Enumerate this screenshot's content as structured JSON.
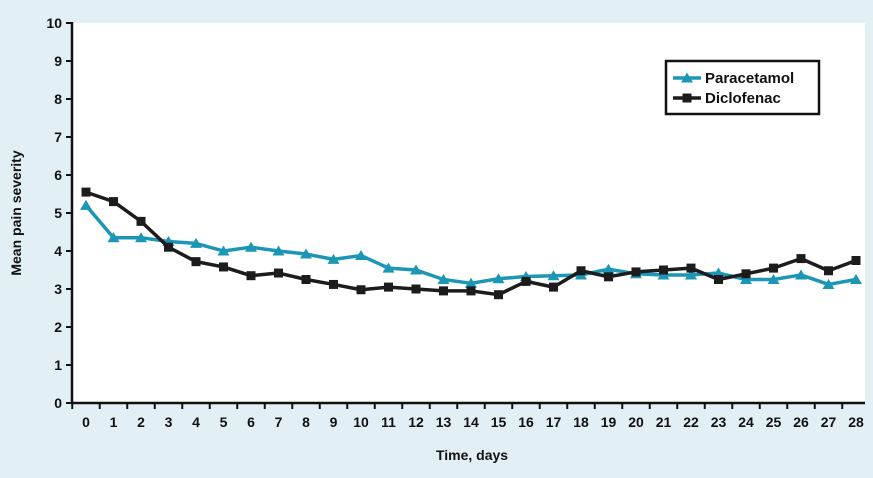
{
  "colors": {
    "background": "#e2eff5",
    "plot_background": "#ffffff",
    "axis": "#111111",
    "paracetamol": "#1b97b5",
    "diclofenac": "#1c1c1c"
  },
  "chart_data": {
    "type": "line",
    "title": "",
    "xlabel": "Time, days",
    "ylabel": "Mean pain severity",
    "xlim": [
      0,
      28
    ],
    "ylim": [
      0,
      10
    ],
    "x_ticks": [
      "0",
      "1",
      "2",
      "3",
      "4",
      "5",
      "6",
      "7",
      "8",
      "9",
      "10",
      "11",
      "12",
      "13",
      "14",
      "15",
      "16",
      "17",
      "18",
      "19",
      "20",
      "21",
      "22",
      "23",
      "24",
      "25",
      "26",
      "27",
      "28"
    ],
    "y_ticks": [
      "0",
      "1",
      "2",
      "3",
      "4",
      "5",
      "6",
      "7",
      "8",
      "9",
      "10"
    ],
    "grid": false,
    "legend_position": "top-right",
    "x": [
      0,
      1,
      2,
      3,
      4,
      5,
      6,
      7,
      8,
      9,
      10,
      11,
      12,
      13,
      14,
      15,
      16,
      17,
      18,
      19,
      20,
      21,
      22,
      23,
      24,
      25,
      26,
      27,
      28
    ],
    "series": [
      {
        "name": "Paracetamol",
        "marker": "triangle",
        "color": "#1b97b5",
        "values": [
          5.2,
          4.35,
          4.35,
          4.25,
          4.2,
          4.0,
          4.1,
          4.0,
          3.92,
          3.78,
          3.88,
          3.55,
          3.5,
          3.25,
          3.15,
          3.27,
          3.33,
          3.35,
          3.37,
          3.52,
          3.4,
          3.37,
          3.37,
          3.42,
          3.25,
          3.25,
          3.37,
          3.12,
          3.25
        ]
      },
      {
        "name": "Diclofenac",
        "marker": "square",
        "color": "#1c1c1c",
        "values": [
          5.55,
          5.3,
          4.78,
          4.1,
          3.72,
          3.58,
          3.35,
          3.42,
          3.25,
          3.12,
          2.98,
          3.05,
          3.0,
          2.95,
          2.95,
          2.85,
          3.2,
          3.05,
          3.48,
          3.32,
          3.45,
          3.5,
          3.55,
          3.25,
          3.4,
          3.55,
          3.8,
          3.48,
          3.75
        ]
      }
    ]
  }
}
